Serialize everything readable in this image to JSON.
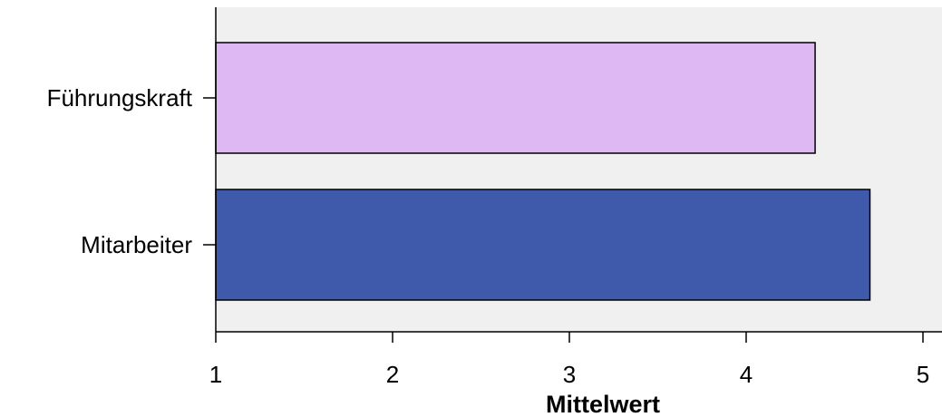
{
  "chart_data": {
    "type": "bar",
    "orientation": "horizontal",
    "categories": [
      "Führungskraft",
      "Mitarbeiter"
    ],
    "values": [
      4.39,
      4.7
    ],
    "xlabel": "Mittelwert",
    "ylabel": "",
    "xlim": [
      1,
      5
    ],
    "xticks": [
      "1",
      "2",
      "3",
      "4",
      "5"
    ],
    "grid": false,
    "colors": {
      "bars": [
        "#ddb8f2",
        "#3f5aab"
      ],
      "plot_background": "#f0f0f0",
      "axis": "#000000"
    }
  }
}
